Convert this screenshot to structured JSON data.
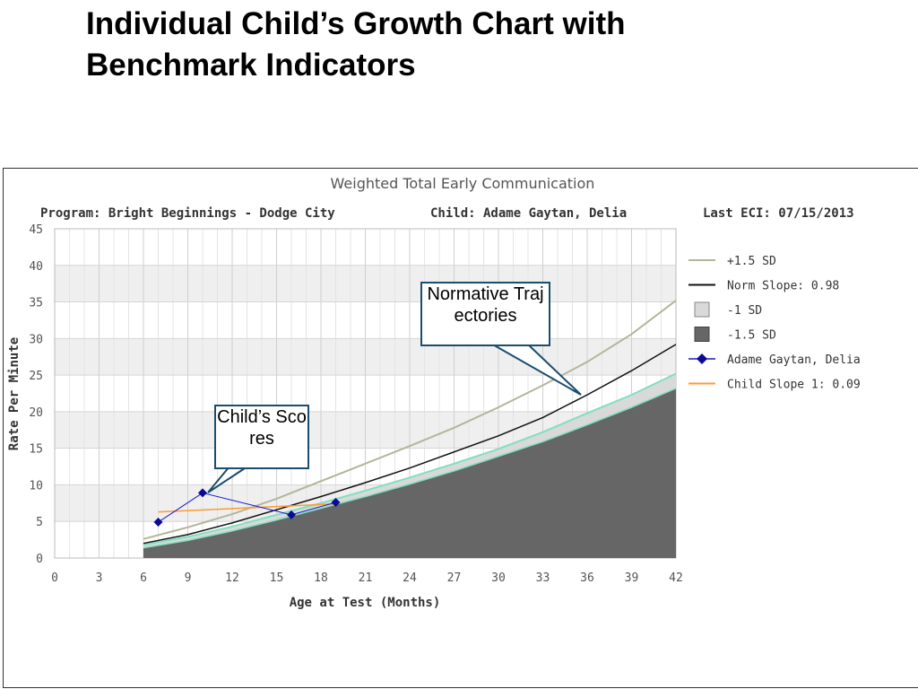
{
  "slide": {
    "title_line1": "Individual Child’s Growth Chart with",
    "title_line2": "Benchmark Indicators"
  },
  "colors": {
    "plus15": "#b5b59a",
    "norm": "#111111",
    "minus1": "#d9d9d9",
    "minus15": "#666666",
    "child": "#1a1acc",
    "childSlope": "#ff9933",
    "teal": "#7fe0c0",
    "calloutBorder": "#1a4d6e"
  },
  "callouts": {
    "normative": "Normative Trajectories",
    "child": "Child’s Scores"
  },
  "chart_data": {
    "type": "line",
    "title": "Weighted Total Early Communication",
    "header": {
      "program": "Program: Bright Beginnings - Dodge City",
      "child": "Child: Adame Gaytan, Delia",
      "last_eci": "Last ECI: 07/15/2013"
    },
    "xlabel": "Age at Test (Months)",
    "ylabel": "Rate Per Minute",
    "xlim": [
      0,
      42
    ],
    "ylim": [
      0,
      45
    ],
    "xticks": [
      0,
      3,
      6,
      9,
      12,
      15,
      18,
      21,
      24,
      27,
      30,
      33,
      36,
      39,
      42
    ],
    "yticks": [
      0,
      5,
      10,
      15,
      20,
      25,
      30,
      35,
      40,
      45
    ],
    "legend_position": "right",
    "legend": [
      "+1.5 SD",
      "Norm Slope: 0.98",
      "-1 SD",
      "-1.5 SD",
      "Adame Gaytan, Delia",
      "Child Slope 1: 0.09"
    ],
    "series": [
      {
        "name": "+1.5 SD",
        "kind": "line",
        "x": [
          6,
          9,
          12,
          15,
          18,
          21,
          24,
          27,
          30,
          33,
          36,
          39,
          42
        ],
        "y": [
          2.6,
          4.2,
          6.0,
          8.1,
          10.5,
          12.9,
          15.3,
          17.8,
          20.6,
          23.6,
          26.8,
          30.6,
          35.2
        ]
      },
      {
        "name": "Norm Slope: 0.98",
        "kind": "line",
        "x": [
          6,
          9,
          12,
          15,
          18,
          21,
          24,
          27,
          30,
          33,
          36,
          39,
          42
        ],
        "y": [
          2.0,
          3.2,
          4.8,
          6.6,
          8.4,
          10.3,
          12.3,
          14.5,
          16.7,
          19.2,
          22.3,
          25.6,
          29.2
        ]
      },
      {
        "name": "-1 SD",
        "kind": "area",
        "x": [
          6,
          9,
          12,
          15,
          18,
          21,
          24,
          27,
          30,
          33,
          36,
          39,
          42
        ],
        "y": [
          1.8,
          2.9,
          4.3,
          5.9,
          7.5,
          9.2,
          11.0,
          12.9,
          14.9,
          17.2,
          19.8,
          22.3,
          25.2
        ]
      },
      {
        "name": "-1.5 SD",
        "kind": "area",
        "x": [
          6,
          9,
          12,
          15,
          18,
          21,
          24,
          27,
          30,
          33,
          36,
          39,
          42
        ],
        "y": [
          1.4,
          2.4,
          3.7,
          5.2,
          6.8,
          8.4,
          10.1,
          11.9,
          13.9,
          15.9,
          18.2,
          20.6,
          23.2
        ]
      },
      {
        "name": "Adame Gaytan, Delia",
        "kind": "points",
        "x": [
          7,
          10,
          16,
          19
        ],
        "y": [
          4.9,
          8.9,
          5.9,
          7.6
        ]
      },
      {
        "name": "Child Slope 1: 0.09",
        "kind": "trend",
        "x": [
          7,
          19
        ],
        "y": [
          6.3,
          7.4
        ]
      }
    ]
  }
}
